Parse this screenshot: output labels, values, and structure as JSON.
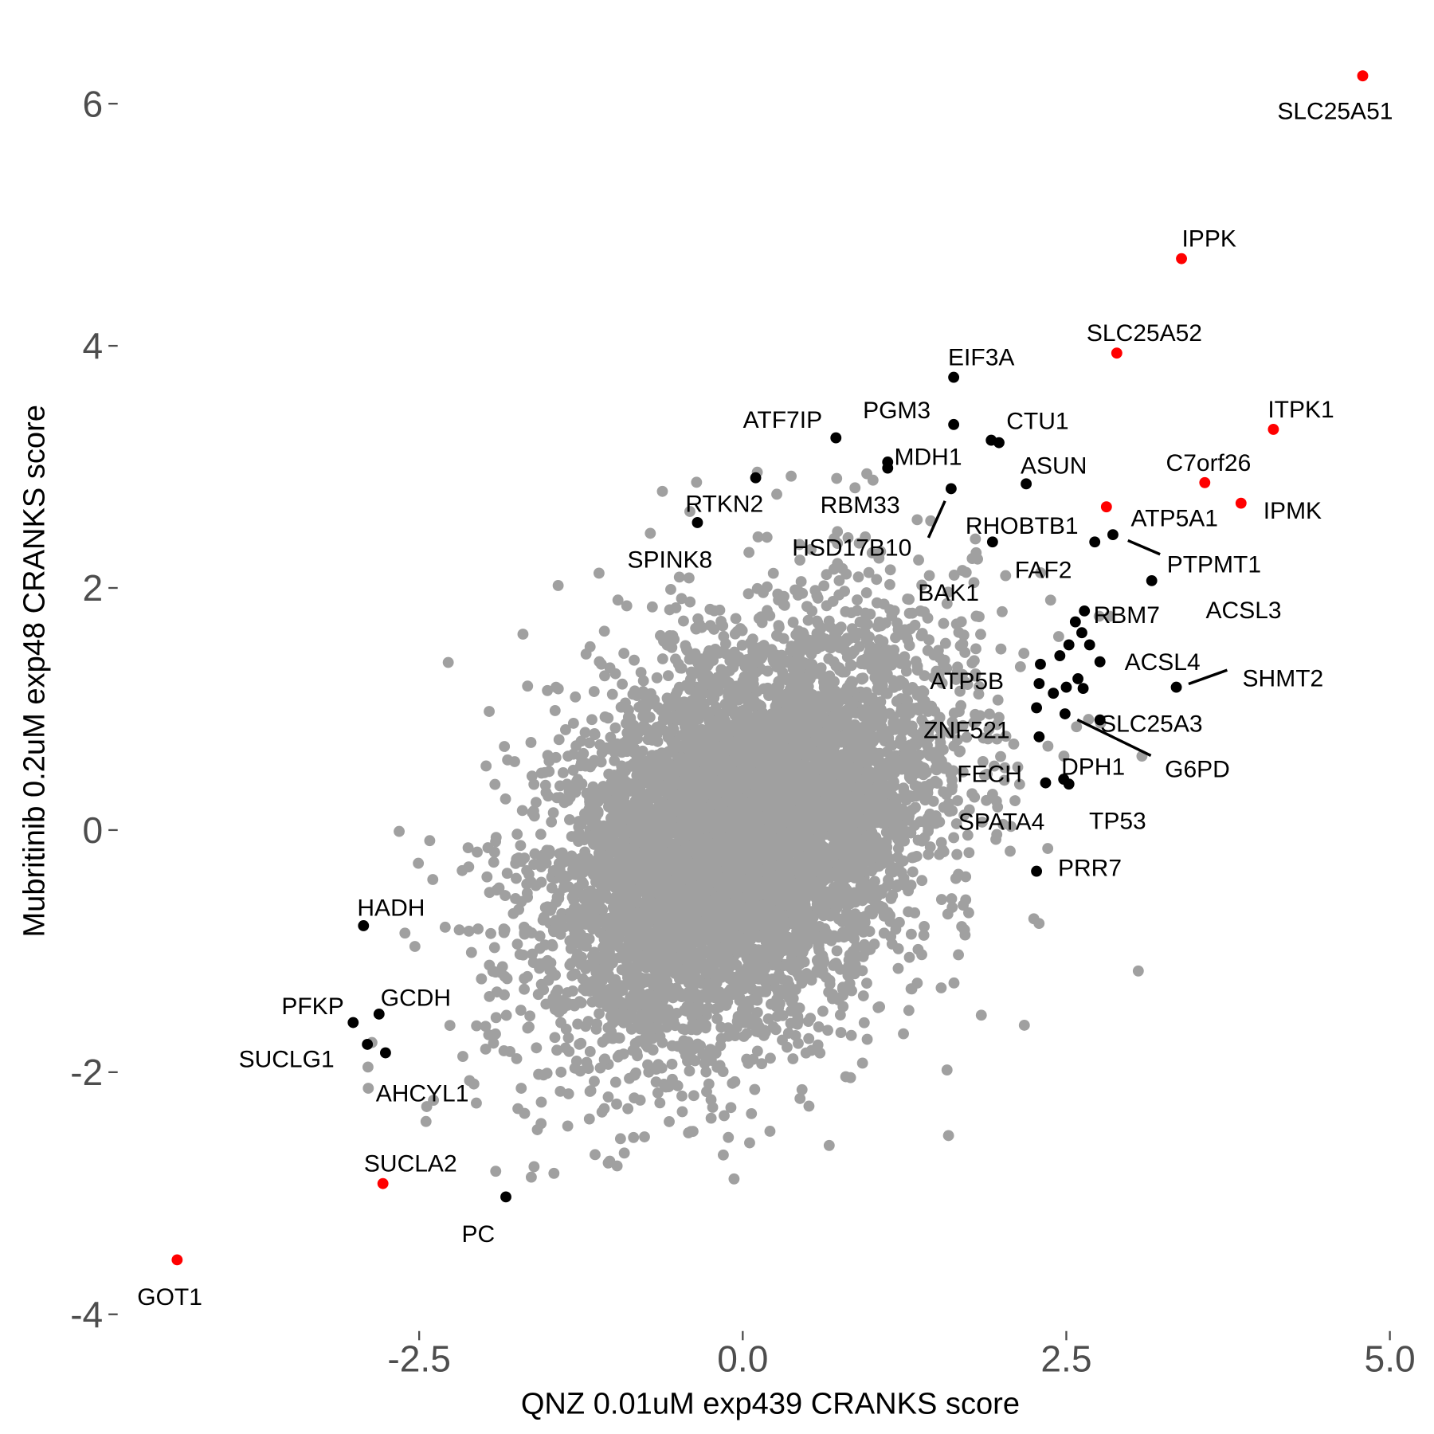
{
  "chart_data": {
    "type": "scatter",
    "title": "",
    "xlabel": "QNZ 0.01uM exp439 CRANKS score",
    "ylabel": "Mubritinib 0.2uM exp48 CRANKS score",
    "xlim": [
      -4.6,
      5.1
    ],
    "ylim": [
      -4.0,
      6.4
    ],
    "x_ticks": [
      "-2.5",
      "0.0",
      "2.5",
      "5.0"
    ],
    "x_tick_values": [
      -2.5,
      0,
      2.5,
      5
    ],
    "y_ticks": [
      "-4",
      "-2",
      "0",
      "2",
      "4",
      "6"
    ],
    "y_tick_values": [
      -4,
      -2,
      0,
      2,
      4,
      6
    ],
    "grid": false,
    "colors": {
      "background_points": "#a0a0a0",
      "highlight": "#000000",
      "top_hits": "#ff0000",
      "axis_text": "#4d4d4d"
    },
    "background_series": {
      "description_of_color": "all genes",
      "approx_x_center": 0.0,
      "approx_y_center": 0.0
    },
    "labeled_points": [
      {
        "label": "SLC25A51",
        "x": 4.79,
        "y": 6.23,
        "color": "#ff0000"
      },
      {
        "label": "IPPK",
        "x": 3.39,
        "y": 4.72,
        "color": "#ff0000"
      },
      {
        "label": "SLC25A52",
        "x": 2.89,
        "y": 3.94,
        "color": "#ff0000"
      },
      {
        "label": "ITPK1",
        "x": 4.1,
        "y": 3.31,
        "color": "#ff0000"
      },
      {
        "label": "C7orf26",
        "x": 3.57,
        "y": 2.87,
        "color": "#ff0000"
      },
      {
        "label": "IPMK",
        "x": 3.85,
        "y": 2.7,
        "color": "#ff0000"
      },
      {
        "label": "ATP5A1",
        "x": 2.81,
        "y": 2.67,
        "color": "#ff0000"
      },
      {
        "label": "SUCLA2",
        "x": -2.78,
        "y": -2.92,
        "color": "#ff0000"
      },
      {
        "label": "GOT1",
        "x": -4.37,
        "y": -3.55,
        "color": "#ff0000"
      },
      {
        "label": "EIF3A",
        "x": 1.63,
        "y": 3.74,
        "color": "#000000"
      },
      {
        "label": "PGM3",
        "x": 1.63,
        "y": 3.35,
        "color": "#000000"
      },
      {
        "label": "CTU1",
        "x": 1.98,
        "y": 3.2,
        "color": "#000000"
      },
      {
        "label": "ATF7IP",
        "x": 0.72,
        "y": 3.24,
        "color": "#000000"
      },
      {
        "label": "MDH1",
        "x": 1.12,
        "y": 3.04,
        "color": "#000000"
      },
      {
        "label": "RBM33",
        "x": 1.12,
        "y": 2.99,
        "color": "#000000"
      },
      {
        "label": "RTKN2",
        "x": 0.1,
        "y": 2.91,
        "color": "#000000"
      },
      {
        "label": "ASUN",
        "x": 2.19,
        "y": 2.86,
        "color": "#000000"
      },
      {
        "label": "HSD17B10",
        "x": 1.61,
        "y": 2.82,
        "color": "#000000"
      },
      {
        "label": "SPINK8",
        "x": -0.35,
        "y": 2.54,
        "color": "#000000"
      },
      {
        "label": "RHOBTB1",
        "x": 1.93,
        "y": 2.38,
        "color": "#000000"
      },
      {
        "label": "FAF2",
        "x": 2.72,
        "y": 2.38,
        "color": "#000000"
      },
      {
        "label": "PTPMT1",
        "x": 2.86,
        "y": 2.44,
        "color": "#000000"
      },
      {
        "label": "ACSL3",
        "x": 3.16,
        "y": 2.06,
        "color": "#000000"
      },
      {
        "label": "RBM7",
        "x": 2.64,
        "y": 1.81,
        "color": "#000000"
      },
      {
        "label": "BAK1",
        "x": 2.57,
        "y": 1.72,
        "color": "#000000"
      },
      {
        "label": "ATP5B",
        "x": 2.3,
        "y": 1.37,
        "color": "#000000"
      },
      {
        "label": "ACSL4",
        "x": 2.76,
        "y": 1.39,
        "color": "#000000"
      },
      {
        "label": "SHMT2",
        "x": 3.35,
        "y": 1.18,
        "color": "#000000"
      },
      {
        "label": "ZNF521",
        "x": 2.27,
        "y": 1.01,
        "color": "#000000"
      },
      {
        "label": "SLC25A3",
        "x": 2.76,
        "y": 0.91,
        "color": "#000000"
      },
      {
        "label": "G6PD",
        "x": 2.49,
        "y": 0.96,
        "color": "#000000"
      },
      {
        "label": "FECH",
        "x": 2.29,
        "y": 0.77,
        "color": "#000000"
      },
      {
        "label": "DPH1",
        "x": 2.48,
        "y": 0.42,
        "color": "#000000"
      },
      {
        "label": "SPATA4",
        "x": 2.34,
        "y": 0.39,
        "color": "#000000"
      },
      {
        "label": "TP53",
        "x": 2.52,
        "y": 0.38,
        "color": "#000000"
      },
      {
        "label": "PRR7",
        "x": 2.27,
        "y": -0.34,
        "color": "#000000"
      },
      {
        "label": "HADH",
        "x": -2.93,
        "y": -0.79,
        "color": "#000000"
      },
      {
        "label": "GCDH",
        "x": -2.81,
        "y": -1.52,
        "color": "#000000"
      },
      {
        "label": "PFKP",
        "x": -3.01,
        "y": -1.59,
        "color": "#000000"
      },
      {
        "label": "SUCLG1",
        "x": -2.9,
        "y": -1.77,
        "color": "#000000"
      },
      {
        "label": "AHCYL1",
        "x": -2.76,
        "y": -1.84,
        "color": "#000000"
      },
      {
        "label": "PC",
        "x": -1.83,
        "y": -3.03,
        "color": "#000000"
      }
    ],
    "unlabeled_highlight_points": [
      {
        "x": 1.92,
        "y": 3.22
      },
      {
        "x": 2.62,
        "y": 1.63
      },
      {
        "x": 2.52,
        "y": 1.53
      },
      {
        "x": 2.68,
        "y": 1.53
      },
      {
        "x": 2.45,
        "y": 1.44
      },
      {
        "x": 2.29,
        "y": 1.21
      },
      {
        "x": 2.4,
        "y": 1.13
      },
      {
        "x": 2.5,
        "y": 1.18
      },
      {
        "x": 2.59,
        "y": 1.25
      },
      {
        "x": 2.63,
        "y": 1.17
      }
    ]
  }
}
